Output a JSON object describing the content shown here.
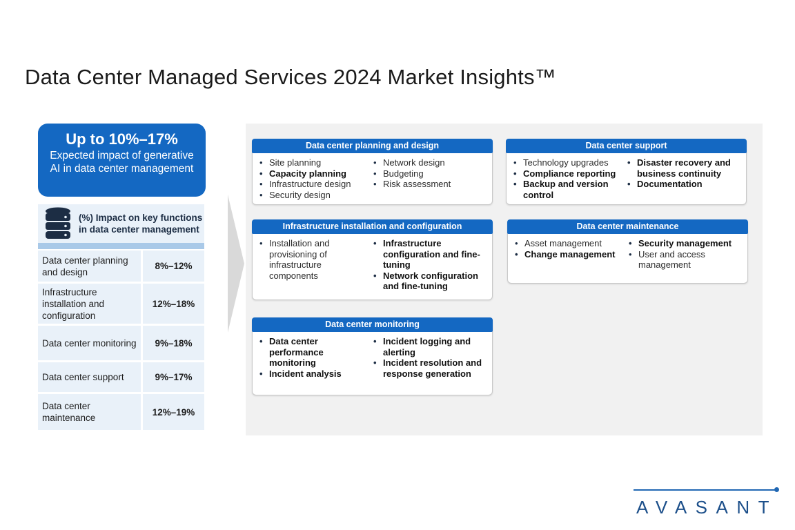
{
  "title": "Data Center Managed Services 2024 Market Insights™",
  "highlight": {
    "value": "Up to 10%–17%",
    "caption": "Expected impact of generative AI in data center management"
  },
  "impact_table": {
    "icon": "database-icon",
    "header": "(%) Impact on key functions in data center management",
    "rows": [
      {
        "function": "Data center planning and design",
        "impact": "8%–12%"
      },
      {
        "function": "Infrastructure installation and configuration",
        "impact": "12%–18%"
      },
      {
        "function": "Data center monitoring",
        "impact": "9%–18%"
      },
      {
        "function": "Data center support",
        "impact": "9%–17%"
      },
      {
        "function": "Data center maintenance",
        "impact": "12%–19%"
      }
    ]
  },
  "function_cards": [
    {
      "title": "Data center planning and design",
      "col1": [
        {
          "text": "Site planning",
          "bold": false
        },
        {
          "text": "Capacity planning",
          "bold": true
        },
        {
          "text": "Infrastructure design",
          "bold": false
        },
        {
          "text": "Security design",
          "bold": false
        }
      ],
      "col2": [
        {
          "text": "Network design",
          "bold": false
        },
        {
          "text": "Budgeting",
          "bold": false
        },
        {
          "text": "Risk assessment",
          "bold": false
        }
      ]
    },
    {
      "title": "Data center support",
      "col1": [
        {
          "text": "Technology upgrades",
          "bold": false
        },
        {
          "text": "Compliance reporting",
          "bold": true
        },
        {
          "text": "Backup and version control",
          "bold": true
        }
      ],
      "col2": [
        {
          "text": "Disaster recovery and business continuity",
          "bold": true
        },
        {
          "text": "Documentation",
          "bold": true
        }
      ]
    },
    {
      "title": "Infrastructure installation and configuration",
      "col1": [
        {
          "text": "Installation and provisioning of infrastructure components",
          "bold": false
        }
      ],
      "col2": [
        {
          "text": "Infrastructure configuration and fine-tuning",
          "bold": true
        },
        {
          "text": "Network configuration and fine-tuning",
          "bold": true
        }
      ]
    },
    {
      "title": "Data center maintenance",
      "col1": [
        {
          "text": "Asset management",
          "bold": false
        },
        {
          "text": "Change management",
          "bold": true
        }
      ],
      "col2": [
        {
          "text": "Security management",
          "bold": true
        },
        {
          "text": "User and access management",
          "bold": false
        }
      ]
    },
    {
      "title": "Data center monitoring",
      "col1": [
        {
          "text": "Data center performance monitoring",
          "bold": true
        },
        {
          "text": "Incident analysis",
          "bold": true
        }
      ],
      "col2": [
        {
          "text": "Incident logging and alerting",
          "bold": true
        },
        {
          "text": "Incident resolution and response generation",
          "bold": true
        }
      ]
    }
  ],
  "logo": {
    "text": "AVASANT"
  },
  "colors": {
    "accent": "#1468c2",
    "panel": "#f1f1f1",
    "light": "#e9f1f9"
  }
}
